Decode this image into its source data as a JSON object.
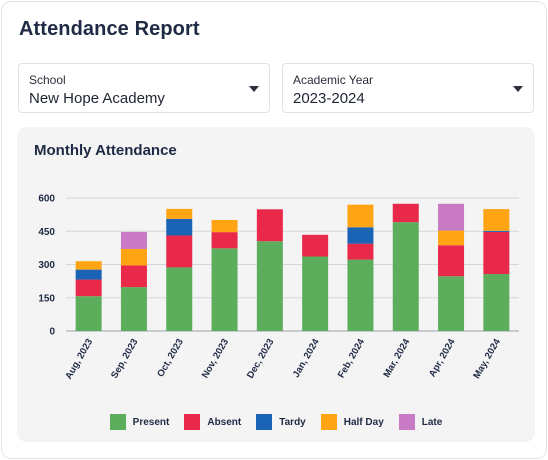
{
  "header": {
    "title": "Attendance Report"
  },
  "filters": {
    "school": {
      "label": "School",
      "value": "New Hope Academy",
      "icon": "chevron-down-icon"
    },
    "year": {
      "label": "Academic Year",
      "value": "2023-2024",
      "icon": "chevron-down-icon"
    }
  },
  "chart_panel": {
    "title": "Monthly Attendance"
  },
  "colors": {
    "present": "#5cae5c",
    "absent": "#e8294a",
    "tardy": "#1a63b5",
    "half_day": "#ffa412",
    "late": "#c97ac4"
  },
  "chart_data": {
    "type": "bar",
    "stacked": true,
    "title": "Monthly Attendance",
    "xlabel": "",
    "ylabel": "",
    "ylim": [
      0,
      600
    ],
    "yticks": [
      0,
      150,
      300,
      450,
      600
    ],
    "grid": true,
    "legend_position": "bottom",
    "categories": [
      "Aug, 2023",
      "Sep, 2023",
      "Oct, 2023",
      "Nov, 2023",
      "Dec, 2023",
      "Jan, 2024",
      "Feb, 2024",
      "Mar, 2024",
      "Apr, 2024",
      "May, 2024"
    ],
    "series": [
      {
        "name": "Present",
        "color": "#5cae5c",
        "values": [
          157,
          198,
          287,
          373,
          405,
          336,
          322,
          491,
          247,
          257
        ]
      },
      {
        "name": "Absent",
        "color": "#e8294a",
        "values": [
          75,
          98,
          144,
          73,
          144,
          98,
          72,
          83,
          140,
          190
        ]
      },
      {
        "name": "Tardy",
        "color": "#1a63b5",
        "values": [
          45,
          0,
          75,
          0,
          0,
          0,
          74,
          0,
          0,
          5
        ]
      },
      {
        "name": "Half Day",
        "color": "#ffa412",
        "values": [
          38,
          74,
          45,
          55,
          0,
          0,
          102,
          0,
          66,
          98
        ]
      },
      {
        "name": "Late",
        "color": "#c97ac4",
        "values": [
          0,
          77,
          0,
          0,
          0,
          0,
          0,
          0,
          121,
          0
        ]
      }
    ]
  }
}
